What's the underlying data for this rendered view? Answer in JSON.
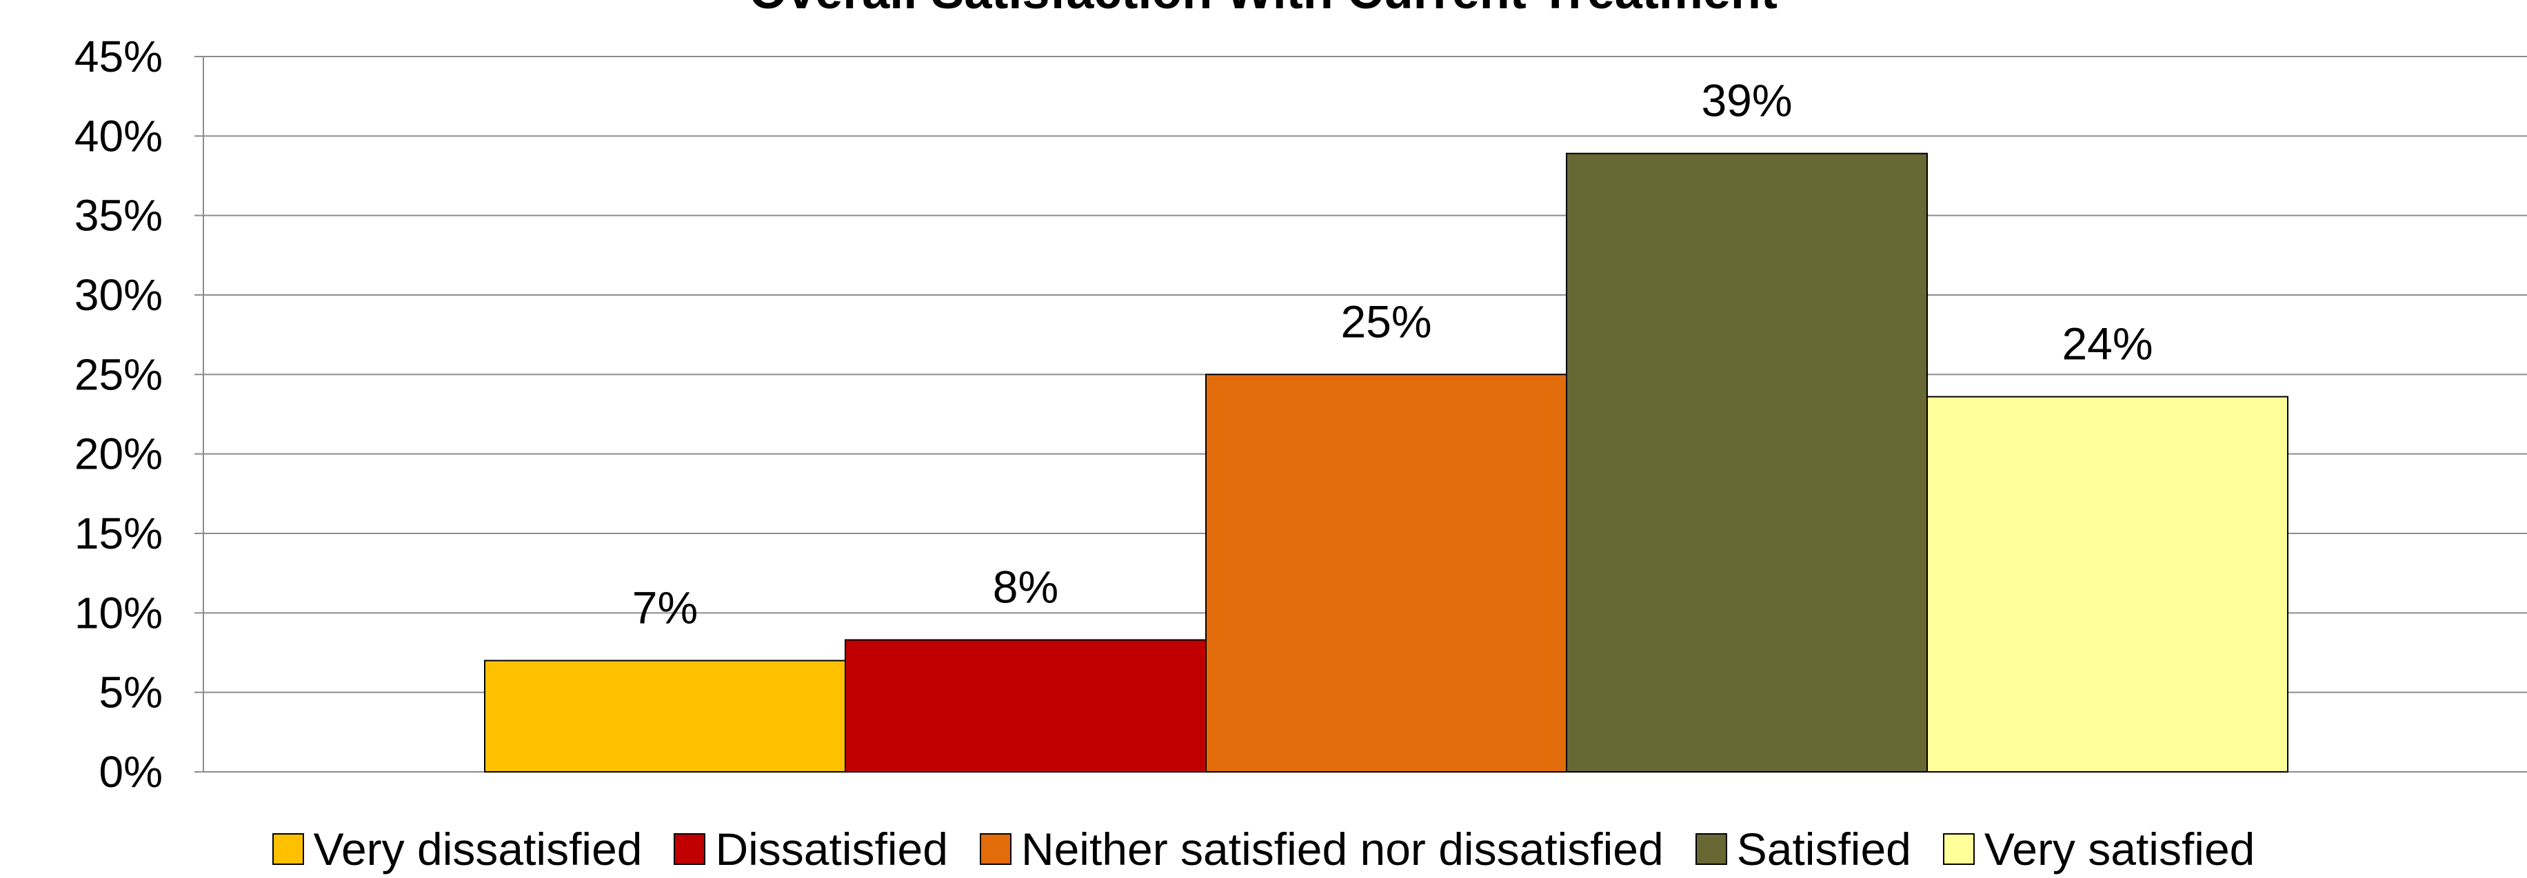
{
  "chart_data": {
    "type": "bar",
    "title": "Overall Satisfaction With Current Treatment",
    "xlabel": "",
    "ylabel": "",
    "ylim": [
      0,
      45
    ],
    "yticks": [
      "0%",
      "5%",
      "10%",
      "15%",
      "20%",
      "25%",
      "30%",
      "35%",
      "40%",
      "45%"
    ],
    "grid": true,
    "legend_position": "bottom",
    "series": [
      {
        "name": "Very dissatisfied",
        "value": 7,
        "label": "7%",
        "color": "#FFC000"
      },
      {
        "name": "Dissatisfied",
        "value": 8.3,
        "label": "8%",
        "color": "#C00000"
      },
      {
        "name": "Neither satisfied nor dissatisfied",
        "value": 25,
        "label": "25%",
        "color": "#E36C0A"
      },
      {
        "name": "Satisfied",
        "value": 38.9,
        "label": "39%",
        "color": "#676833"
      },
      {
        "name": "Very satisfied",
        "value": 23.6,
        "label": "24%",
        "color": "#FFFF99"
      }
    ]
  }
}
